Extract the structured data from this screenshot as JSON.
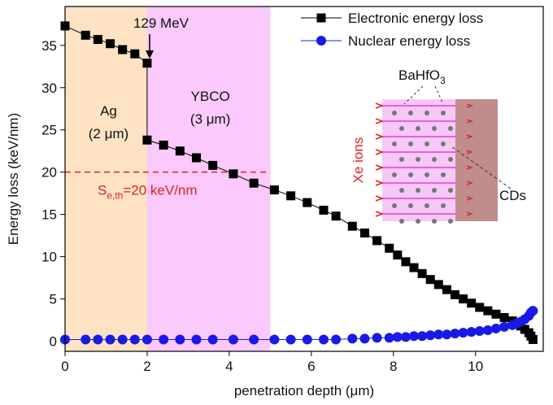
{
  "chart_data": {
    "type": "line",
    "xlabel": "penetration depth (μm)",
    "ylabel": "Energy loss (keV/nm)",
    "xlim": [
      0,
      11.65
    ],
    "ylim": [
      -1.2,
      39.6
    ],
    "xticks": [
      0,
      2,
      4,
      6,
      8,
      10
    ],
    "yticks": [
      0,
      5,
      10,
      15,
      20,
      25,
      30,
      35
    ],
    "legend": "top-right",
    "series": [
      {
        "name": "Electronic energy loss",
        "color": "#000000",
        "marker": "square",
        "x": [
          0,
          0.5,
          0.8,
          1.1,
          1.4,
          1.7,
          2.0,
          2.0,
          2.4,
          2.8,
          3.2,
          3.6,
          4.1,
          4.6,
          5.1,
          5.5,
          5.9,
          6.3,
          6.6,
          7.0,
          7.3,
          7.6,
          7.9,
          8.1,
          8.3,
          8.5,
          8.7,
          8.9,
          9.1,
          9.3,
          9.5,
          9.7,
          9.9,
          10.1,
          10.3,
          10.5,
          10.7,
          10.9,
          11.0,
          11.1,
          11.2,
          11.3,
          11.35,
          11.4
        ],
        "values": [
          37.3,
          36.2,
          35.7,
          35.2,
          34.5,
          34.0,
          32.9,
          23.8,
          23.2,
          22.5,
          21.7,
          20.8,
          19.8,
          18.7,
          17.9,
          17.2,
          16.4,
          15.5,
          14.8,
          13.6,
          12.8,
          11.9,
          11.0,
          10.2,
          9.4,
          8.7,
          8.0,
          7.3,
          6.7,
          6.1,
          5.5,
          5.0,
          4.5,
          4.0,
          3.6,
          3.2,
          2.8,
          2.4,
          2.1,
          1.8,
          1.4,
          1.0,
          0.6,
          0.2
        ]
      },
      {
        "name": "Nuclear energy loss",
        "color": "#1a1ae6",
        "marker": "circle",
        "x": [
          0,
          0.5,
          0.8,
          1.1,
          1.4,
          1.7,
          2.0,
          2.4,
          2.8,
          3.2,
          3.6,
          4.1,
          4.6,
          5.1,
          5.5,
          5.9,
          6.3,
          6.6,
          7.0,
          7.3,
          7.6,
          7.9,
          8.1,
          8.3,
          8.5,
          8.7,
          8.9,
          9.1,
          9.3,
          9.5,
          9.7,
          9.9,
          10.1,
          10.3,
          10.5,
          10.7,
          10.9,
          11.0,
          11.1,
          11.2,
          11.3,
          11.35,
          11.4
        ],
        "values": [
          0.2,
          0.2,
          0.2,
          0.2,
          0.2,
          0.2,
          0.2,
          0.2,
          0.2,
          0.2,
          0.2,
          0.2,
          0.2,
          0.2,
          0.2,
          0.2,
          0.2,
          0.2,
          0.3,
          0.3,
          0.4,
          0.4,
          0.5,
          0.5,
          0.6,
          0.6,
          0.7,
          0.8,
          0.8,
          0.9,
          1.0,
          1.1,
          1.2,
          1.3,
          1.5,
          1.7,
          1.9,
          2.1,
          2.3,
          2.6,
          3.0,
          3.4,
          3.6
        ]
      }
    ],
    "regions": [
      {
        "label": "Ag",
        "sublabel": "(2 μm)",
        "xlim": [
          0,
          2
        ],
        "color": "#fde3c3"
      },
      {
        "label": "YBCO",
        "sublabel": "(3 μm)",
        "xlim": [
          2,
          5
        ],
        "color": "#fbc9fb"
      }
    ],
    "threshold": {
      "value": 20,
      "label": [
        "S",
        "e,th",
        "=20 keV/nm"
      ],
      "color": "#e02020"
    },
    "energy_label": "129 MeV",
    "inset": {
      "ions": "Xe ions",
      "particles": [
        "BaHfO",
        "3"
      ],
      "tracks": "CDs"
    }
  }
}
